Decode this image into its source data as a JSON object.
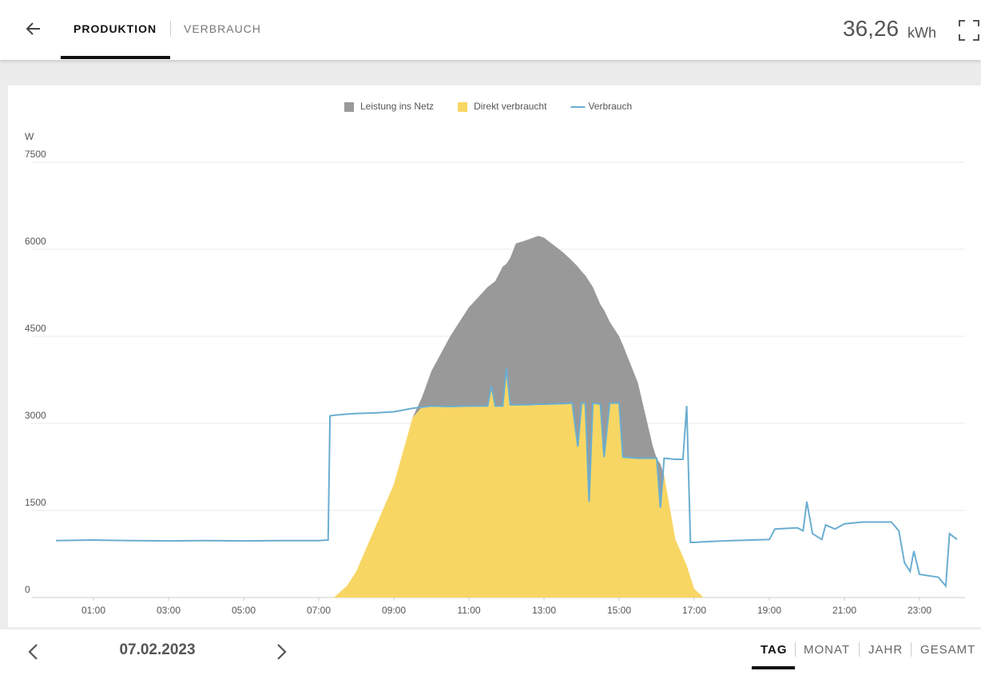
{
  "header": {
    "tabs": [
      "PRODUKTION",
      "VERBRAUCH"
    ],
    "total_value": "36,26",
    "total_unit": "kWh"
  },
  "footer": {
    "date": "07.02.2023",
    "range_tabs": [
      "TAG",
      "MONAT",
      "JAHR",
      "GESAMT"
    ]
  },
  "chart_data": {
    "type": "area",
    "y_label": "W",
    "stacked": true,
    "grid": true,
    "x": [
      0,
      1,
      2,
      3,
      4,
      5,
      6,
      7,
      7.25,
      7.3,
      7.4,
      7.75,
      8,
      8.5,
      9,
      9.5,
      9.75,
      10,
      10.5,
      11,
      11.5,
      11.6,
      11.7,
      11.9,
      12,
      12.1,
      12.25,
      12.5,
      12.85,
      13,
      13.5,
      13.75,
      13.9,
      14,
      14.1,
      14.2,
      14.3,
      14.5,
      14.6,
      14.75,
      15,
      15.1,
      15.5,
      15.9,
      16,
      16.1,
      16.2,
      16.5,
      16.7,
      16.8,
      16.9,
      17,
      17.25,
      18,
      19,
      19.15,
      19.75,
      19.9,
      20,
      20.15,
      20.4,
      20.5,
      20.75,
      21,
      21.5,
      22.25,
      22.45,
      22.6,
      22.75,
      22.85,
      23,
      23.5,
      23.7,
      23.8,
      24
    ],
    "series": [
      {
        "name": "Leistung ins Netz",
        "color": "#999999",
        "type": "area",
        "values": [
          0,
          0,
          0,
          0,
          0,
          0,
          0,
          0,
          0,
          0,
          0,
          0,
          0,
          0,
          0,
          0,
          170,
          600,
          1210,
          1700,
          2050,
          1750,
          2150,
          2400,
          1800,
          2530,
          2780,
          2830,
          2900,
          2870,
          2610,
          2450,
          3100,
          2270,
          2200,
          3800,
          2000,
          1720,
          2530,
          1400,
          1150,
          1930,
          1300,
          200,
          0,
          750,
          0,
          0,
          0,
          0,
          0,
          0,
          0,
          0,
          0,
          0,
          0,
          0,
          0,
          0,
          0,
          0,
          0,
          0,
          0,
          0,
          0,
          0,
          0,
          0,
          0,
          0,
          0,
          0,
          0
        ]
      },
      {
        "name": "Direkt verbraucht",
        "color": "#f8d664",
        "type": "area",
        "values": [
          0,
          0,
          0,
          0,
          0,
          0,
          0,
          0,
          0,
          0,
          0,
          200,
          450,
          1200,
          1950,
          3100,
          3280,
          3300,
          3290,
          3300,
          3300,
          3650,
          3300,
          3300,
          3950,
          3320,
          3320,
          3320,
          3330,
          3330,
          3340,
          3350,
          2600,
          3350,
          3350,
          1650,
          3350,
          3330,
          2420,
          3350,
          3350,
          2420,
          2400,
          2400,
          2400,
          1550,
          2100,
          1000,
          700,
          550,
          350,
          150,
          0,
          0,
          0,
          0,
          0,
          0,
          0,
          0,
          0,
          0,
          0,
          0,
          0,
          0,
          0,
          0,
          0,
          0,
          0,
          0,
          0,
          0,
          0
        ]
      },
      {
        "name": "Verbrauch",
        "color": "#6aaed0",
        "type": "line",
        "values": [
          980,
          990,
          980,
          975,
          980,
          975,
          980,
          980,
          990,
          3130,
          3140,
          3160,
          3170,
          3180,
          3200,
          3260,
          3280,
          3300,
          3290,
          3300,
          3300,
          3650,
          3300,
          3300,
          3950,
          3320,
          3320,
          3320,
          3330,
          3330,
          3340,
          3350,
          2600,
          3350,
          3350,
          1650,
          3350,
          3330,
          2420,
          3350,
          3350,
          2420,
          2400,
          2400,
          2400,
          1550,
          2400,
          2380,
          2380,
          3300,
          950,
          950,
          960,
          980,
          1000,
          1180,
          1200,
          1150,
          1650,
          1100,
          1000,
          1250,
          1180,
          1270,
          1300,
          1300,
          1150,
          600,
          450,
          800,
          400,
          350,
          200,
          1100,
          1000
        ]
      }
    ],
    "xlim": [
      0,
      24
    ],
    "xticks": [
      {
        "value": 1,
        "label": "01:00"
      },
      {
        "value": 3,
        "label": "03:00"
      },
      {
        "value": 5,
        "label": "05:00"
      },
      {
        "value": 7,
        "label": "07:00"
      },
      {
        "value": 9,
        "label": "09:00"
      },
      {
        "value": 11,
        "label": "11:00"
      },
      {
        "value": 13,
        "label": "13:00"
      },
      {
        "value": 15,
        "label": "15:00"
      },
      {
        "value": 17,
        "label": "17:00"
      },
      {
        "value": 19,
        "label": "19:00"
      },
      {
        "value": 21,
        "label": "21:00"
      },
      {
        "value": 23,
        "label": "23:00"
      }
    ],
    "ylim": [
      0,
      7500
    ],
    "yticks": [
      0,
      1500,
      3000,
      4500,
      6000,
      7500
    ]
  }
}
